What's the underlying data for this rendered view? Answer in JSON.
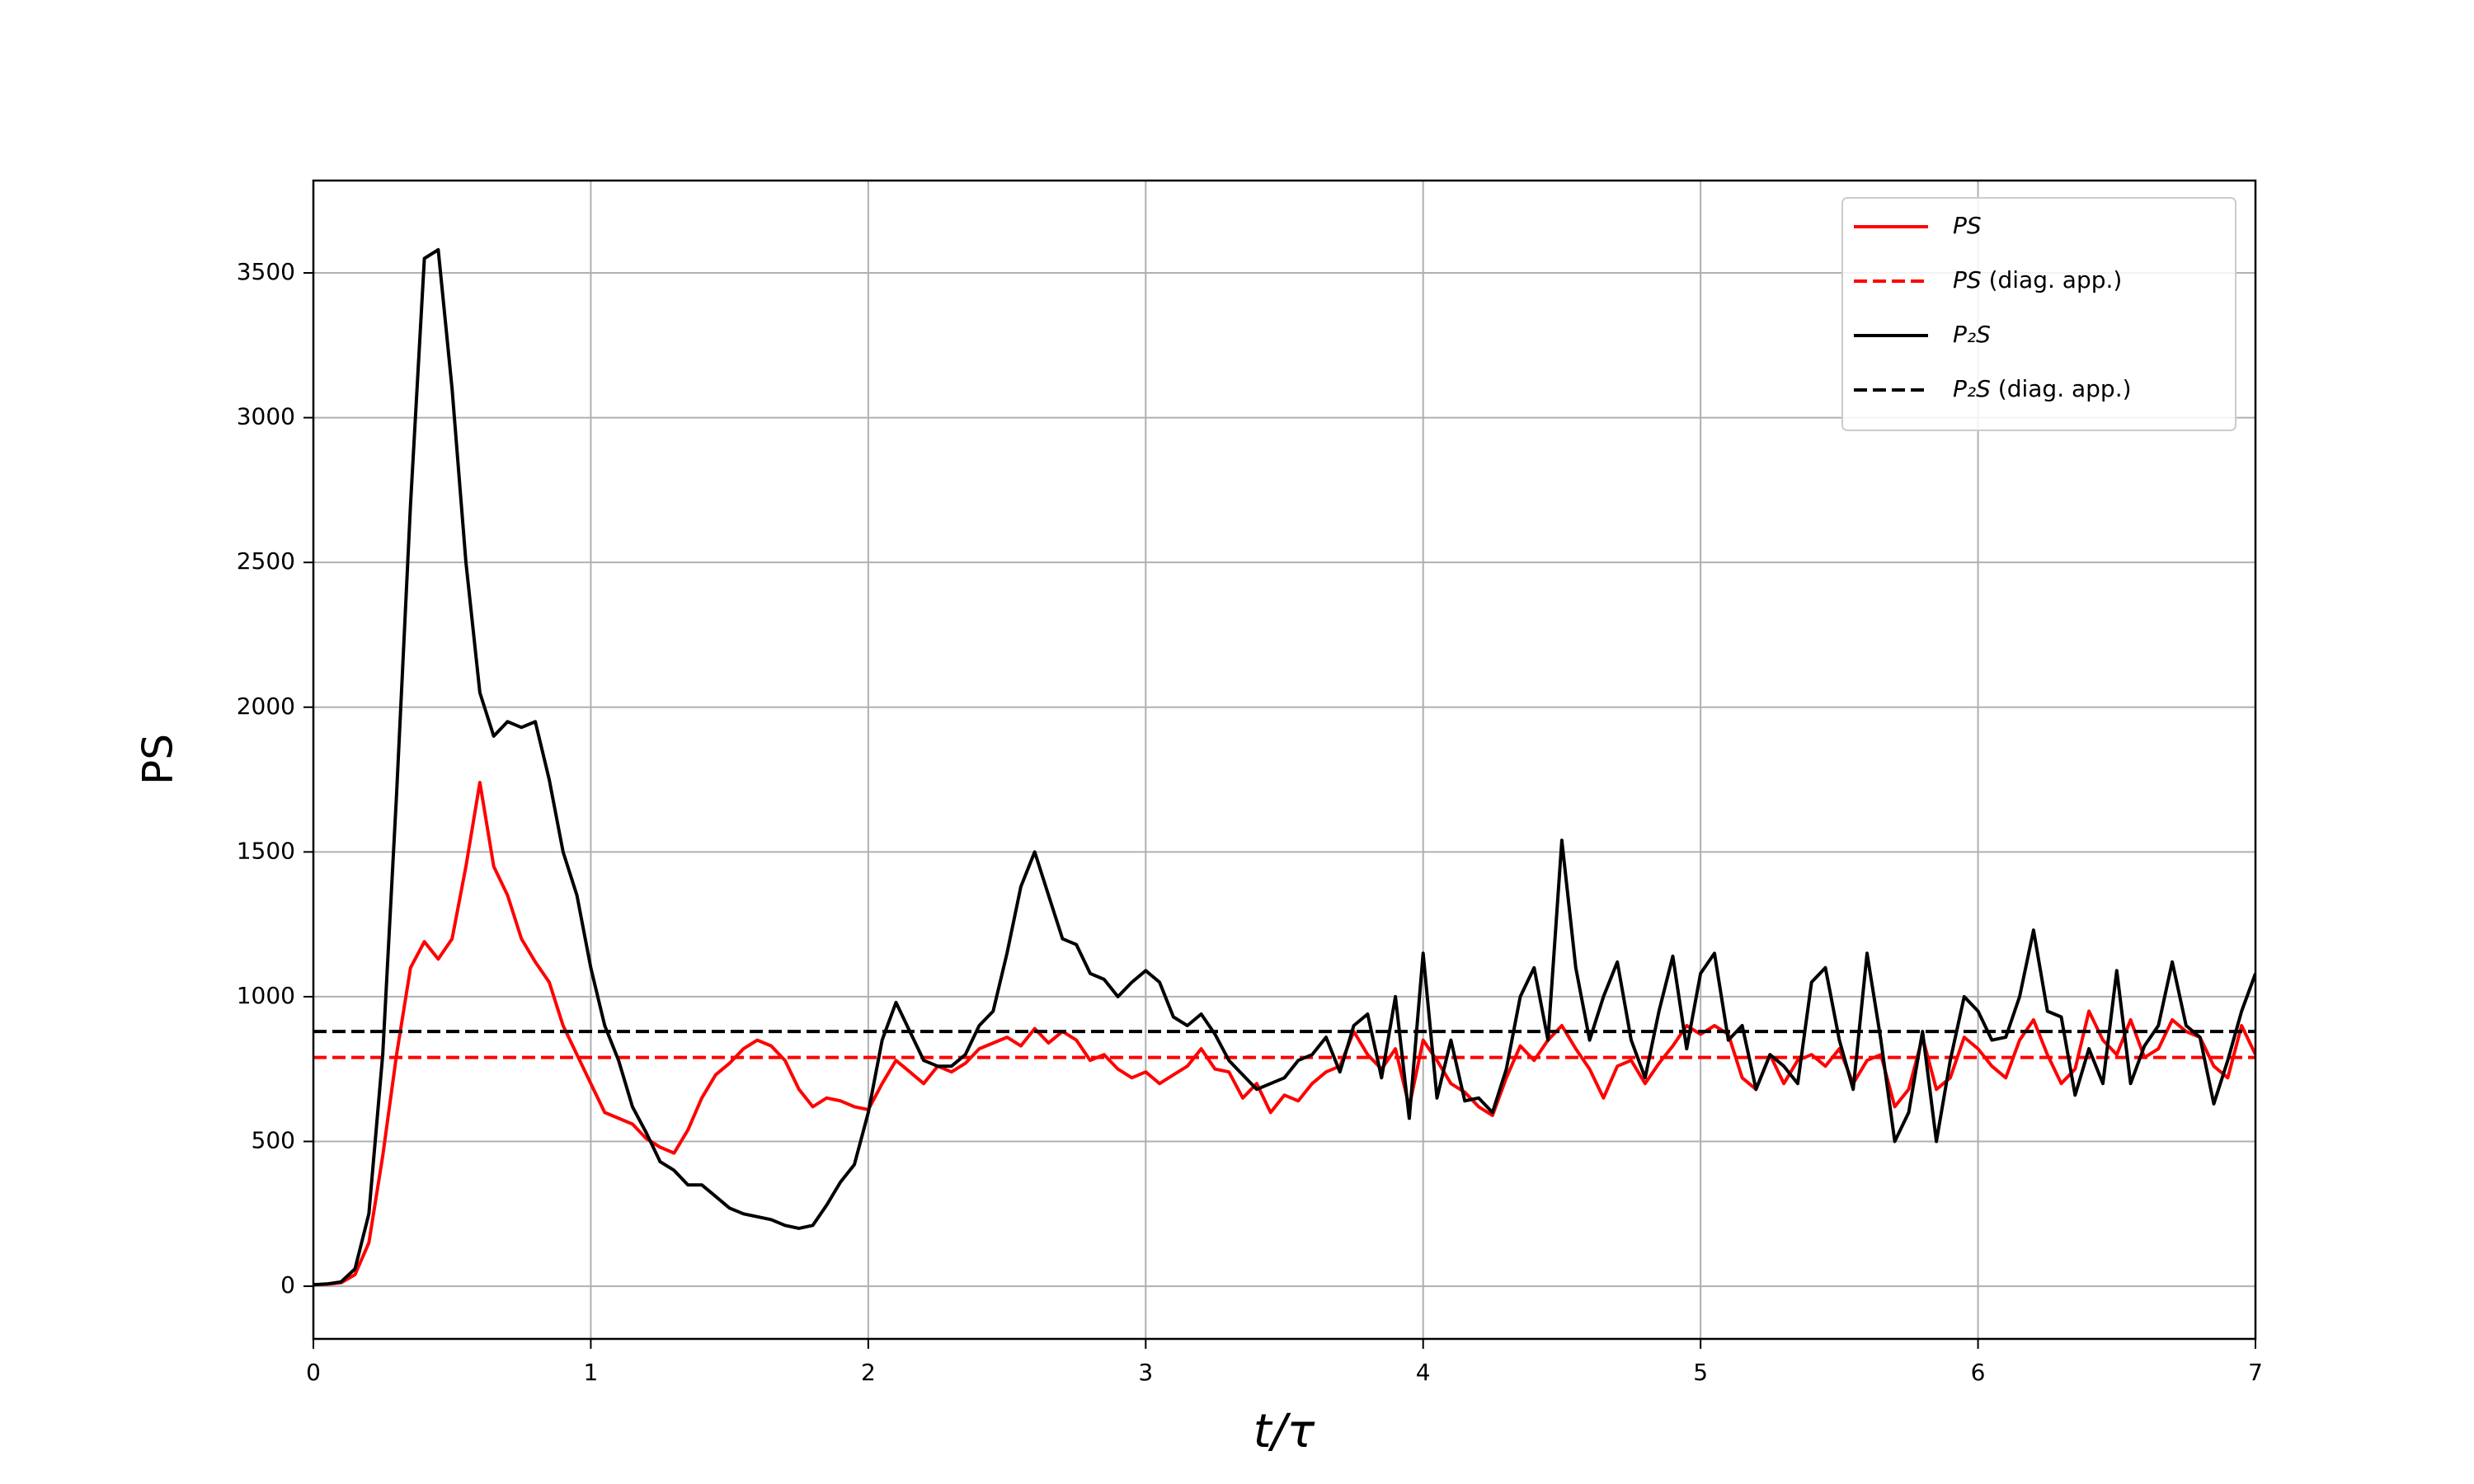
{
  "chart_data": {
    "type": "line",
    "xlabel": "t/τ",
    "ylabel": "PS",
    "xlim": [
      0,
      7
    ],
    "ylim": [
      -182,
      3819
    ],
    "xticks": [
      0,
      1,
      2,
      3,
      4,
      5,
      6,
      7
    ],
    "yticks": [
      0,
      500,
      1000,
      1500,
      2000,
      2500,
      3000,
      3500
    ],
    "grid": true,
    "legend": "upper right",
    "x": [
      0,
      0.05,
      0.1,
      0.15,
      0.2,
      0.25,
      0.3,
      0.35,
      0.4,
      0.45,
      0.5,
      0.55,
      0.6,
      0.65,
      0.7,
      0.75,
      0.8,
      0.85,
      0.9,
      0.95,
      1,
      1.05,
      1.1,
      1.15,
      1.2,
      1.25,
      1.3,
      1.35,
      1.4,
      1.45,
      1.5,
      1.55,
      1.6,
      1.65,
      1.7,
      1.75,
      1.8,
      1.85,
      1.9,
      1.95,
      2,
      2.05,
      2.1,
      2.15,
      2.2,
      2.25,
      2.3,
      2.35,
      2.4,
      2.45,
      2.5,
      2.55,
      2.6,
      2.65,
      2.7,
      2.75,
      2.8,
      2.85,
      2.9,
      2.95,
      3,
      3.05,
      3.1,
      3.15,
      3.2,
      3.25,
      3.3,
      3.35,
      3.4,
      3.45,
      3.5,
      3.55,
      3.6,
      3.65,
      3.7,
      3.75,
      3.8,
      3.85,
      3.9,
      3.95,
      4,
      4.05,
      4.1,
      4.15,
      4.2,
      4.25,
      4.3,
      4.35,
      4.4,
      4.45,
      4.5,
      4.55,
      4.6,
      4.65,
      4.7,
      4.75,
      4.8,
      4.85,
      4.9,
      4.95,
      5,
      5.05,
      5.1,
      5.15,
      5.2,
      5.25,
      5.3,
      5.35,
      5.4,
      5.45,
      5.5,
      5.55,
      5.6,
      5.65,
      5.7,
      5.75,
      5.8,
      5.85,
      5.9,
      5.95,
      6,
      6.05,
      6.1,
      6.15,
      6.2,
      6.25,
      6.3,
      6.35,
      6.4,
      6.45,
      6.5,
      6.55,
      6.6,
      6.65,
      6.7,
      6.75,
      6.8,
      6.85,
      6.9,
      6.95,
      7
    ],
    "series": [
      {
        "name": "PS",
        "color": "#ff0000",
        "linestyle": "solid",
        "values": [
          5,
          7,
          12,
          40,
          150,
          450,
          800,
          1100,
          1190,
          1130,
          1200,
          1450,
          1740,
          1450,
          1350,
          1200,
          1120,
          1050,
          900,
          800,
          700,
          600,
          580,
          560,
          510,
          480,
          460,
          540,
          650,
          730,
          770,
          820,
          850,
          830,
          780,
          680,
          620,
          650,
          640,
          620,
          610,
          700,
          780,
          740,
          700,
          760,
          740,
          770,
          820,
          840,
          860,
          830,
          890,
          840,
          880,
          850,
          780,
          800,
          750,
          720,
          740,
          700,
          730,
          760,
          820,
          750,
          740,
          650,
          700,
          600,
          660,
          640,
          700,
          740,
          760,
          880,
          800,
          750,
          820,
          620,
          850,
          780,
          700,
          670,
          620,
          590,
          720,
          830,
          780,
          850,
          900,
          820,
          750,
          650,
          760,
          780,
          700,
          770,
          830,
          900,
          870,
          900,
          870,
          720,
          680,
          800,
          700,
          780,
          800,
          760,
          820,
          700,
          780,
          800,
          620,
          680,
          860,
          680,
          720,
          860,
          820,
          760,
          720,
          850,
          920,
          800,
          700,
          750,
          950,
          850,
          800,
          920,
          790,
          820,
          920,
          880,
          860,
          760,
          720,
          900,
          800
        ]
      },
      {
        "name": "PS (diag. app.)",
        "color": "#ff0000",
        "linestyle": "dashed",
        "value": 790
      },
      {
        "name": "P₂S",
        "color": "#000000",
        "linestyle": "solid",
        "values": [
          5,
          8,
          15,
          60,
          250,
          800,
          1700,
          2700,
          3550,
          3580,
          3100,
          2500,
          2050,
          1900,
          1950,
          1930,
          1950,
          1750,
          1500,
          1350,
          1100,
          900,
          780,
          620,
          530,
          430,
          400,
          350,
          350,
          310,
          270,
          250,
          240,
          230,
          210,
          200,
          210,
          280,
          360,
          420,
          600,
          850,
          980,
          880,
          780,
          760,
          760,
          800,
          900,
          950,
          1150,
          1380,
          1500,
          1350,
          1200,
          1180,
          1080,
          1060,
          1000,
          1050,
          1090,
          1050,
          930,
          900,
          940,
          870,
          780,
          730,
          680,
          700,
          720,
          780,
          800,
          860,
          740,
          900,
          940,
          720,
          1000,
          580,
          1150,
          650,
          850,
          640,
          650,
          600,
          750,
          1000,
          1100,
          850,
          1540,
          1100,
          850,
          1000,
          1120,
          850,
          720,
          950,
          1140,
          820,
          1080,
          1150,
          850,
          900,
          680,
          800,
          760,
          700,
          1050,
          1100,
          850,
          680,
          1150,
          850,
          500,
          600,
          880,
          500,
          780,
          1000,
          950,
          850,
          860,
          1000,
          1230,
          950,
          930,
          660,
          820,
          700,
          1090,
          700,
          830,
          900,
          1120,
          900,
          860,
          630,
          780,
          950,
          1080
        ]
      },
      {
        "name": "P₂S (diag. app.)",
        "color": "#000000",
        "linestyle": "dashed",
        "value": 880
      }
    ]
  }
}
